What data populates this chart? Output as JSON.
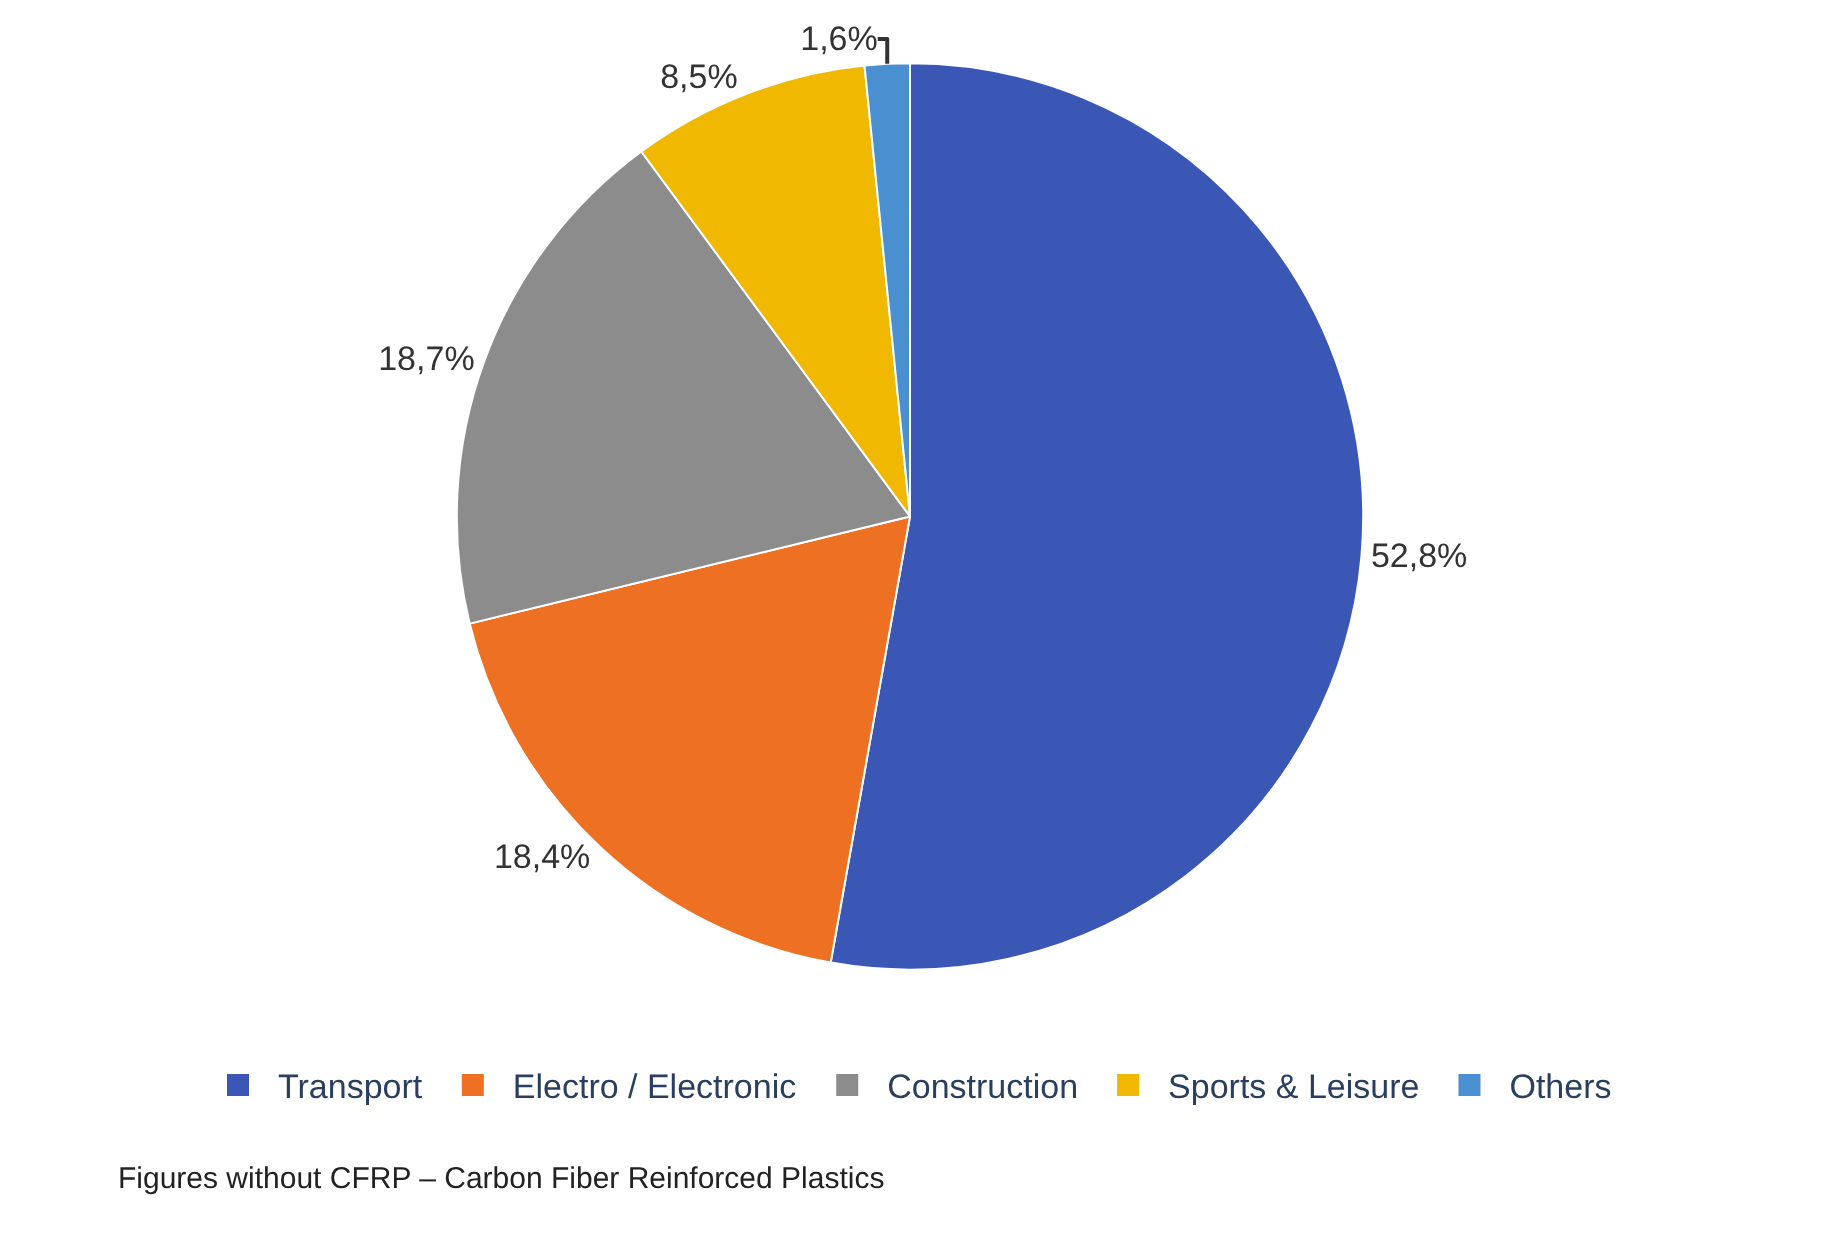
{
  "chart_data": {
    "type": "pie",
    "categories": [
      "Transport",
      "Electro / Electronic",
      "Construction",
      "Sports & Leisure",
      "Others"
    ],
    "values": [
      52.8,
      18.4,
      18.7,
      8.5,
      1.6
    ],
    "value_labels": [
      "52,8%",
      "18,4%",
      "18,7%",
      "8,5%",
      "1,6%"
    ],
    "colors": [
      "#3a57b5",
      "#ee7023",
      "#8c8c8c",
      "#f0b800",
      "#4a90d0"
    ],
    "legend": "bottom",
    "annotations": [
      "Figures without CFRP – Carbon Fiber Reinforced Plastics"
    ]
  }
}
